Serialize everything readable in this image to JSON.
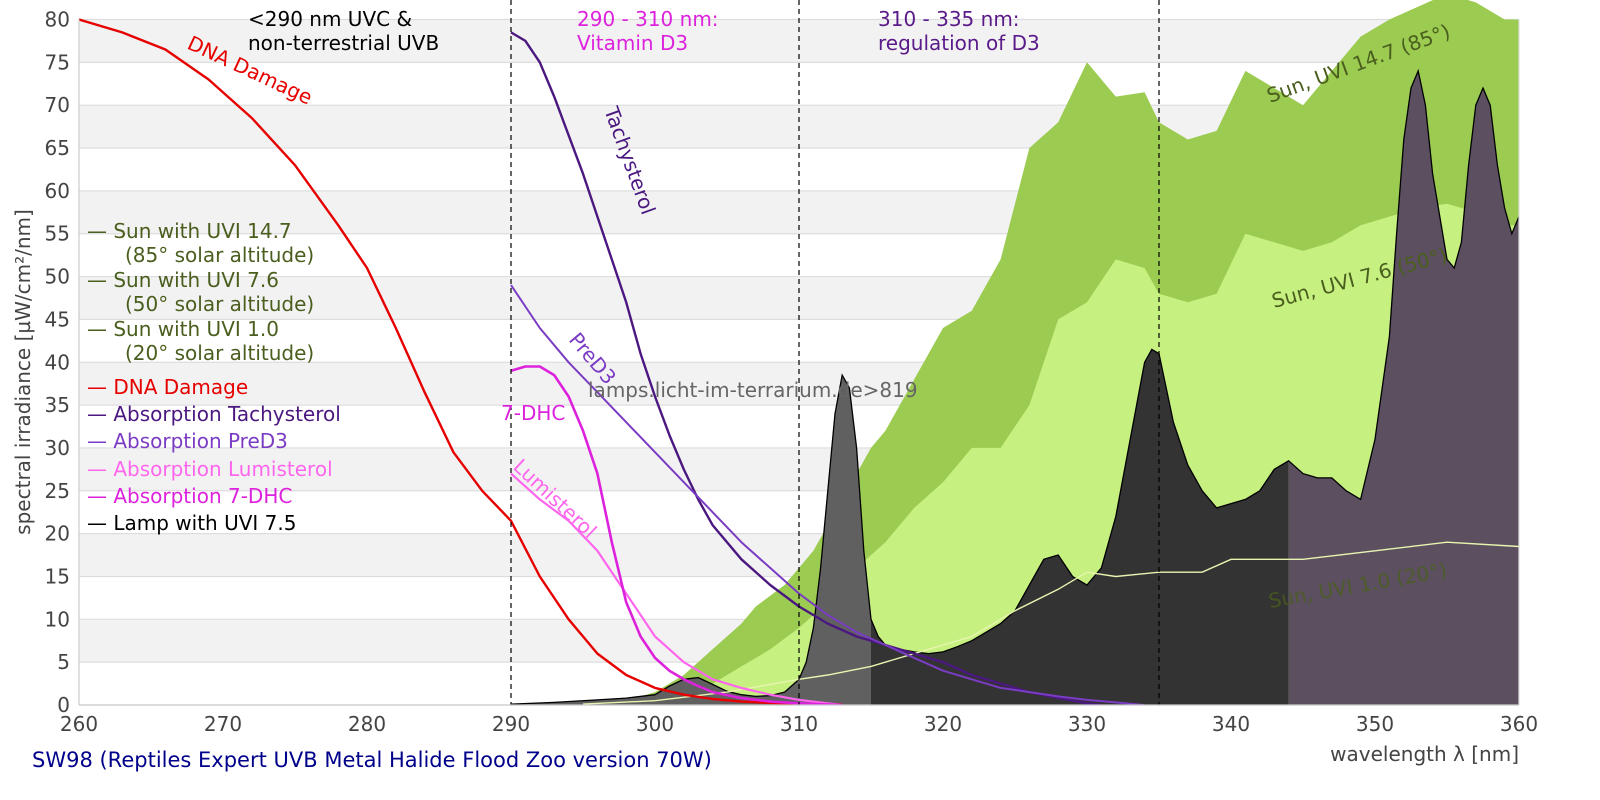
{
  "chart_data": {
    "type": "area",
    "title": "",
    "caption": "SW98 (Reptiles Expert UVB Metal Halide Flood Zoo version 70W)",
    "xlabel": "wavelength λ [nm]",
    "ylabel": "spectral irradiance [µW/cm²/nm]",
    "xlim": [
      260,
      360
    ],
    "ylim": [
      0,
      80
    ],
    "x_ticks": [
      "260",
      "270",
      "280",
      "290",
      "300",
      "310",
      "320",
      "330",
      "340",
      "350",
      "360"
    ],
    "y_ticks": [
      "0",
      "5",
      "10",
      "15",
      "20",
      "25",
      "30",
      "35",
      "40",
      "45",
      "50",
      "55",
      "60",
      "65",
      "70",
      "75",
      "80"
    ],
    "grid": "horizontal bands",
    "watermark": "lamps.licht-im-terrarium.de>819",
    "region_lines": [
      290,
      310,
      335
    ],
    "region_annotations": [
      {
        "line1": "<290 nm UVC &",
        "line2": "non-terrestrial UVB",
        "color": "#000000"
      },
      {
        "line1": "290 - 310 nm:",
        "line2": "Vitamin D3",
        "color": "#dd22dd"
      },
      {
        "line1": "310 - 335 nm:",
        "line2": "regulation of D3",
        "color": "#5a1a8a"
      }
    ],
    "legend": {
      "placement": "left",
      "entries": [
        {
          "label": "— Sun with UVI 14.7",
          "sub": "(85° solar altitude)",
          "color": "#4a5e1e"
        },
        {
          "label": "— Sun with UVI 7.6",
          "sub": "(50° solar altitude)",
          "color": "#4a5e1e"
        },
        {
          "label": "— Sun with UVI 1.0",
          "sub": "(20° solar altitude)",
          "color": "#4a5e1e"
        },
        {
          "label": "— DNA Damage",
          "color": "#e60000"
        },
        {
          "label": "— Absorption Tachysterol",
          "color": "#4b1880"
        },
        {
          "label": "— Absorption PreD3",
          "color": "#7b3cc4"
        },
        {
          "label": "— Absorption Lumisterol",
          "color": "#ff66ee"
        },
        {
          "label": "— Absorption 7-DHC",
          "color": "#dd22dd"
        },
        {
          "label": "— Lamp with UVI 7.5",
          "color": "#000000"
        }
      ]
    },
    "series": [
      {
        "name": "Sun with UVI 14.7",
        "kind": "area",
        "color": "#9bcb50",
        "label": "Sun, UVI 14.7 (85°)",
        "x": [
          298,
          300,
          302,
          304,
          306,
          307,
          309,
          311,
          313,
          315,
          316,
          318,
          320,
          322,
          324,
          326,
          328,
          330,
          332,
          334,
          335,
          337,
          339,
          341,
          343,
          345,
          347,
          349,
          351,
          353,
          355,
          357,
          359,
          360
        ],
        "y": [
          0.5,
          1.5,
          3.5,
          6.5,
          9.5,
          11.5,
          14,
          18,
          24,
          30,
          32,
          38,
          44,
          46,
          52,
          65,
          68,
          75,
          71,
          71.5,
          68,
          66,
          67,
          74,
          72,
          70,
          74,
          78,
          80,
          81.5,
          83,
          82,
          80,
          80
        ]
      },
      {
        "name": "Sun with UVI 7.6",
        "kind": "area",
        "color": "#c6f080",
        "label": "Sun, UVI 7.6 (50°)",
        "x": [
          300,
          302,
          304,
          306,
          308,
          310,
          312,
          314,
          316,
          318,
          320,
          322,
          324,
          326,
          328,
          330,
          332,
          334,
          335,
          337,
          339,
          341,
          343,
          345,
          347,
          349,
          351,
          353,
          355,
          357,
          359,
          360
        ],
        "y": [
          0.3,
          1,
          2.5,
          4.5,
          6.5,
          9,
          12,
          16,
          19,
          23,
          26,
          30,
          30,
          35,
          45,
          47,
          52,
          51,
          48,
          47,
          48,
          55,
          54,
          53,
          54,
          56,
          57,
          58,
          58.5,
          57.5,
          56,
          56
        ]
      },
      {
        "name": "Sun with UVI 1.0",
        "kind": "line",
        "color": "#e8f5b0",
        "label": "Sun, UVI 1.0 (20°)",
        "x": [
          295,
          300,
          305,
          310,
          312,
          315,
          318,
          320,
          322,
          325,
          328,
          330,
          332,
          335,
          338,
          340,
          343,
          345,
          350,
          355,
          360
        ],
        "y": [
          0.1,
          0.5,
          1.5,
          3,
          3.5,
          4.5,
          6,
          7,
          8,
          11,
          13.5,
          15.5,
          15,
          15.5,
          15.5,
          17,
          17,
          17,
          18,
          19,
          18.5
        ]
      },
      {
        "name": "Lamp with UVI 7.5",
        "kind": "area",
        "color": "#333333",
        "segments": [
          {
            "from": 260,
            "to": 315,
            "color": "#606060"
          },
          {
            "from": 315,
            "to": 344,
            "color": "#333333"
          },
          {
            "from": 344,
            "to": 360,
            "color": "#5c5060"
          }
        ],
        "x": [
          290,
          293,
          296,
          298,
          300,
          301,
          302,
          303,
          304,
          305,
          306,
          307,
          308,
          309,
          310,
          310.5,
          311,
          311.5,
          312,
          312.5,
          313,
          313.5,
          314,
          314.5,
          315,
          315.5,
          316,
          317,
          318,
          319,
          320,
          321,
          322,
          323,
          324,
          325,
          326,
          327,
          328,
          329,
          330,
          331,
          332,
          333,
          334,
          334.5,
          335,
          336,
          337,
          338,
          339,
          340,
          341,
          342,
          343,
          344,
          345,
          346,
          347,
          348,
          349,
          350,
          351,
          351.5,
          352,
          352.5,
          353,
          353.5,
          354,
          355,
          355.5,
          356,
          356.5,
          357,
          357.5,
          358,
          358.5,
          359,
          359.5,
          360
        ],
        "y": [
          0.1,
          0.3,
          0.6,
          0.8,
          1.2,
          2.2,
          3.0,
          3.2,
          2.4,
          1.6,
          1.2,
          1.0,
          1.1,
          1.5,
          3,
          5,
          9,
          16,
          25,
          34,
          38.5,
          37,
          30,
          18,
          10,
          8,
          7,
          6.5,
          6.2,
          6.0,
          6.2,
          6.8,
          7.5,
          8.5,
          9.5,
          11,
          14,
          17,
          17.5,
          15,
          14,
          16,
          22,
          31,
          40,
          41.5,
          41,
          33,
          28,
          25,
          23,
          23.5,
          24,
          25,
          27.5,
          28.5,
          27,
          26.5,
          26.5,
          25,
          24,
          31,
          43,
          55,
          66,
          72,
          74,
          70,
          62,
          52,
          51,
          54,
          63,
          70,
          72,
          70,
          63,
          58,
          55,
          57
        ]
      },
      {
        "name": "DNA Damage",
        "kind": "line",
        "color": "#e60000",
        "label": "DNA Damage",
        "x": [
          260,
          263,
          266,
          269,
          272,
          275,
          278,
          280,
          282,
          284,
          286,
          288,
          290,
          292,
          294,
          296,
          298,
          300,
          302,
          304,
          306,
          308,
          310,
          312,
          313
        ],
        "y": [
          80,
          78.5,
          76.5,
          73,
          68.5,
          63,
          56,
          51,
          44,
          36.5,
          29.5,
          25,
          21.5,
          15,
          10,
          6,
          3.5,
          2,
          1.2,
          0.7,
          0.4,
          0.25,
          0.15,
          0.1,
          0.05
        ]
      },
      {
        "name": "Absorption Tachysterol",
        "kind": "line",
        "color": "#4b1880",
        "label": "Tachysterol",
        "x": [
          290,
          291,
          292,
          293,
          294,
          295,
          296,
          297,
          298,
          299,
          300,
          301,
          302,
          303,
          304,
          306,
          308,
          310,
          312,
          314,
          316,
          318,
          320,
          322,
          324,
          326,
          328,
          330,
          331
        ],
        "y": [
          78.5,
          77.5,
          75,
          71,
          66.5,
          62,
          57,
          52,
          47,
          41,
          36,
          31.5,
          27.5,
          24,
          21,
          17,
          14,
          11.5,
          9.5,
          8,
          7,
          6,
          5,
          3.5,
          2.5,
          1.5,
          0.8,
          0.2,
          0
        ]
      },
      {
        "name": "Absorption PreD3",
        "kind": "line",
        "color": "#7b3cc4",
        "label": "PreD3",
        "x": [
          290,
          292,
          294,
          296,
          298,
          300,
          302,
          304,
          306,
          308,
          310,
          312,
          314,
          316,
          318,
          320,
          322,
          324,
          326,
          328,
          330,
          332,
          334
        ],
        "y": [
          49,
          44,
          40,
          36.5,
          33,
          29.5,
          26,
          22.5,
          19,
          16,
          13,
          10.5,
          8.5,
          7,
          5.5,
          4,
          3,
          2,
          1.5,
          1,
          0.6,
          0.3,
          0
        ]
      },
      {
        "name": "Absorption Lumisterol",
        "kind": "line",
        "color": "#ff66ee",
        "label": "Lumisterol",
        "x": [
          290,
          292,
          294,
          296,
          297,
          298,
          299,
          300,
          301,
          302,
          303,
          304,
          306,
          308,
          310,
          312,
          313
        ],
        "y": [
          27,
          24,
          21.5,
          18,
          15.5,
          13,
          10.5,
          8,
          6.5,
          5,
          4,
          3,
          2,
          1.2,
          0.6,
          0.2,
          0
        ]
      },
      {
        "name": "Absorption 7-DHC",
        "kind": "line",
        "color": "#dd22dd",
        "label": "7-DHC",
        "x": [
          290,
          291,
          292,
          293,
          294,
          295,
          296,
          297,
          298,
          299,
          300,
          301,
          302,
          303,
          304,
          306,
          308,
          310,
          312,
          313
        ],
        "y": [
          39,
          39.5,
          39.5,
          38.5,
          36,
          32,
          27,
          19,
          12,
          8,
          5.5,
          4,
          3,
          2.2,
          1.5,
          0.8,
          0.4,
          0.2,
          0.05,
          0
        ]
      }
    ]
  }
}
